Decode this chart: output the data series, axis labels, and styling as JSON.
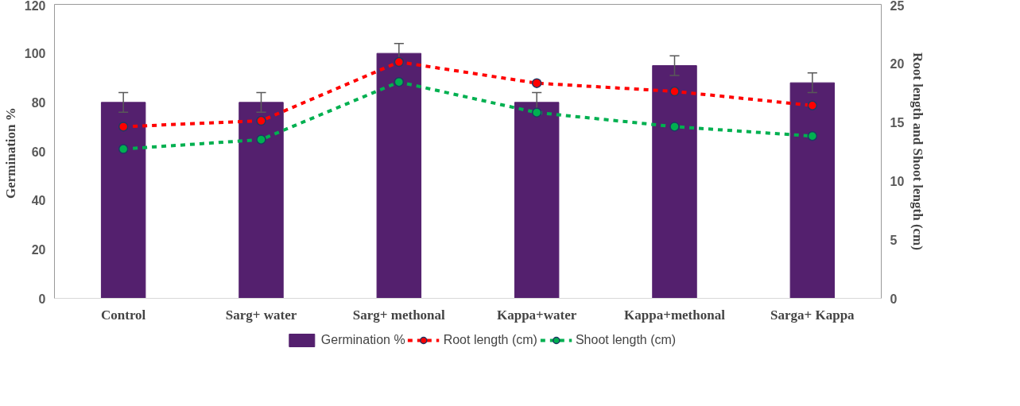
{
  "chart_data": {
    "type": "bar",
    "ylabel": "Germination  %",
    "y2label": "Root length and Shoot length (cm)",
    "categories": [
      "Control",
      "Sarg+ water",
      "Sarg+ methonal",
      "Kappa+water",
      "Kappa+methonal",
      "Sarga+ Kappa"
    ],
    "series": [
      {
        "name": "Germination %",
        "color": "#54206e",
        "values": [
          80,
          80,
          100,
          80,
          95,
          88
        ],
        "errors": [
          4,
          4,
          4,
          4,
          4,
          4
        ]
      },
      {
        "name": "Root length (cm)",
        "type": "line",
        "axis": "y2",
        "color": "#ff0000",
        "values": [
          14.6,
          15.1,
          20.1,
          18.3,
          17.6,
          16.4
        ]
      },
      {
        "name": "Shoot length (cm)",
        "type": "line",
        "axis": "y2",
        "color": "#00b050",
        "values": [
          12.7,
          13.5,
          18.4,
          15.8,
          14.6,
          13.8
        ]
      }
    ],
    "ylim": [
      0,
      120
    ],
    "yticks": [
      0,
      20,
      40,
      60,
      80,
      100,
      120
    ],
    "y2lim": [
      0,
      25
    ],
    "y2ticks": [
      0,
      5,
      10,
      15,
      20,
      25
    ],
    "legend": "bottom",
    "grid": false,
    "marker": "circle",
    "line_style": "dashed"
  }
}
